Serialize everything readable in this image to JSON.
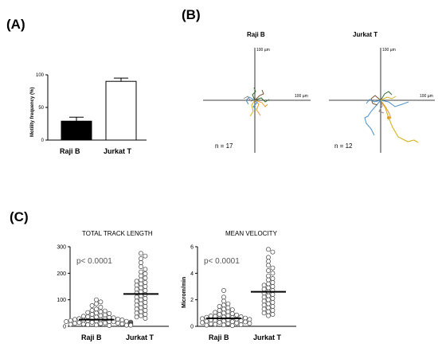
{
  "panels": {
    "a_label": "(A)",
    "b_label": "(B)",
    "c_label": "(C)"
  },
  "chart_data": [
    {
      "type": "bar",
      "panel": "A",
      "categories": [
        "Raji B",
        "Jurkat T"
      ],
      "values": [
        29,
        90
      ],
      "errors": [
        6,
        5
      ],
      "fills": [
        "#000000",
        "#ffffff"
      ],
      "ylabel": "Motility frequency (%)",
      "ylim": [
        0,
        100
      ],
      "yticks": [
        "0",
        "50",
        "100"
      ]
    },
    {
      "type": "scatter",
      "panel": "B",
      "subplots": [
        {
          "title": "Raji B",
          "n_label": "n = 17",
          "scale_x": "100 µm",
          "scale_y": "100 µm"
        },
        {
          "title": "Jurkat T",
          "n_label": "n = 12",
          "scale_x": "100 µm",
          "scale_y": "100 µm"
        }
      ],
      "track_colors": [
        "#e69a28",
        "#4a8fc9",
        "#2e6b2e",
        "#d4b21c",
        "#7a5230",
        "#8a8a8a"
      ]
    },
    {
      "type": "scatter",
      "panel": "C",
      "title": "TOTAL TRACK LENGTH",
      "annotation": "p< 0.0001",
      "categories": [
        "Raji B",
        "Jurkat T"
      ],
      "ylim": [
        0,
        300
      ],
      "yticks": [
        "0",
        "100",
        "200",
        "300"
      ],
      "means": [
        25,
        122
      ],
      "series": [
        {
          "name": "Raji B",
          "values": [
            100,
            92,
            85,
            78,
            72,
            65,
            60,
            58,
            55,
            52,
            50,
            48,
            45,
            43,
            40,
            38,
            36,
            35,
            33,
            32,
            30,
            29,
            28,
            27,
            26,
            25,
            24,
            23,
            22,
            21,
            20,
            19,
            18,
            18,
            17,
            16,
            15,
            15,
            14,
            13,
            12,
            12,
            11,
            10,
            10,
            9,
            8,
            8,
            7,
            6,
            6,
            5,
            5,
            4,
            4,
            3
          ]
        },
        {
          "name": "Jurkat T",
          "values": [
            275,
            265,
            255,
            240,
            225,
            215,
            205,
            198,
            190,
            182,
            175,
            170,
            165,
            160,
            155,
            150,
            145,
            140,
            135,
            130,
            125,
            120,
            115,
            110,
            105,
            100,
            95,
            90,
            85,
            80,
            75,
            70,
            65,
            60,
            55,
            50,
            45,
            40,
            35,
            30
          ]
        }
      ]
    },
    {
      "type": "scatter",
      "panel": "C",
      "title": "MEAN VELOCITY",
      "annotation": "p< 0.0001",
      "ylabel": "Microm/min",
      "categories": [
        "Raji B",
        "Jurkat T"
      ],
      "ylim": [
        0,
        6
      ],
      "yticks": [
        "0",
        "2",
        "4",
        "6"
      ],
      "means": [
        0.6,
        2.6
      ],
      "series": [
        {
          "name": "Raji B",
          "values": [
            2.7,
            2.2,
            1.9,
            1.7,
            1.6,
            1.5,
            1.4,
            1.3,
            1.25,
            1.2,
            1.1,
            1.05,
            1.0,
            0.95,
            0.9,
            0.85,
            0.8,
            0.78,
            0.75,
            0.72,
            0.7,
            0.68,
            0.65,
            0.62,
            0.6,
            0.58,
            0.55,
            0.52,
            0.5,
            0.48,
            0.45,
            0.42,
            0.4,
            0.38,
            0.35,
            0.33,
            0.3,
            0.28,
            0.25,
            0.22,
            0.2,
            0.18,
            0.15,
            0.12,
            0.1,
            0.08,
            0.05
          ]
        },
        {
          "name": "Jurkat T",
          "values": [
            5.8,
            5.6,
            5.2,
            4.9,
            4.6,
            4.4,
            4.2,
            4.0,
            3.8,
            3.6,
            3.5,
            3.3,
            3.2,
            3.1,
            3.0,
            2.9,
            2.8,
            2.7,
            2.6,
            2.5,
            2.4,
            2.3,
            2.2,
            2.1,
            2.0,
            1.9,
            1.8,
            1.7,
            1.6,
            1.5,
            1.4,
            1.3,
            1.2,
            1.1,
            1.0,
            0.9,
            0.8
          ]
        }
      ]
    }
  ]
}
